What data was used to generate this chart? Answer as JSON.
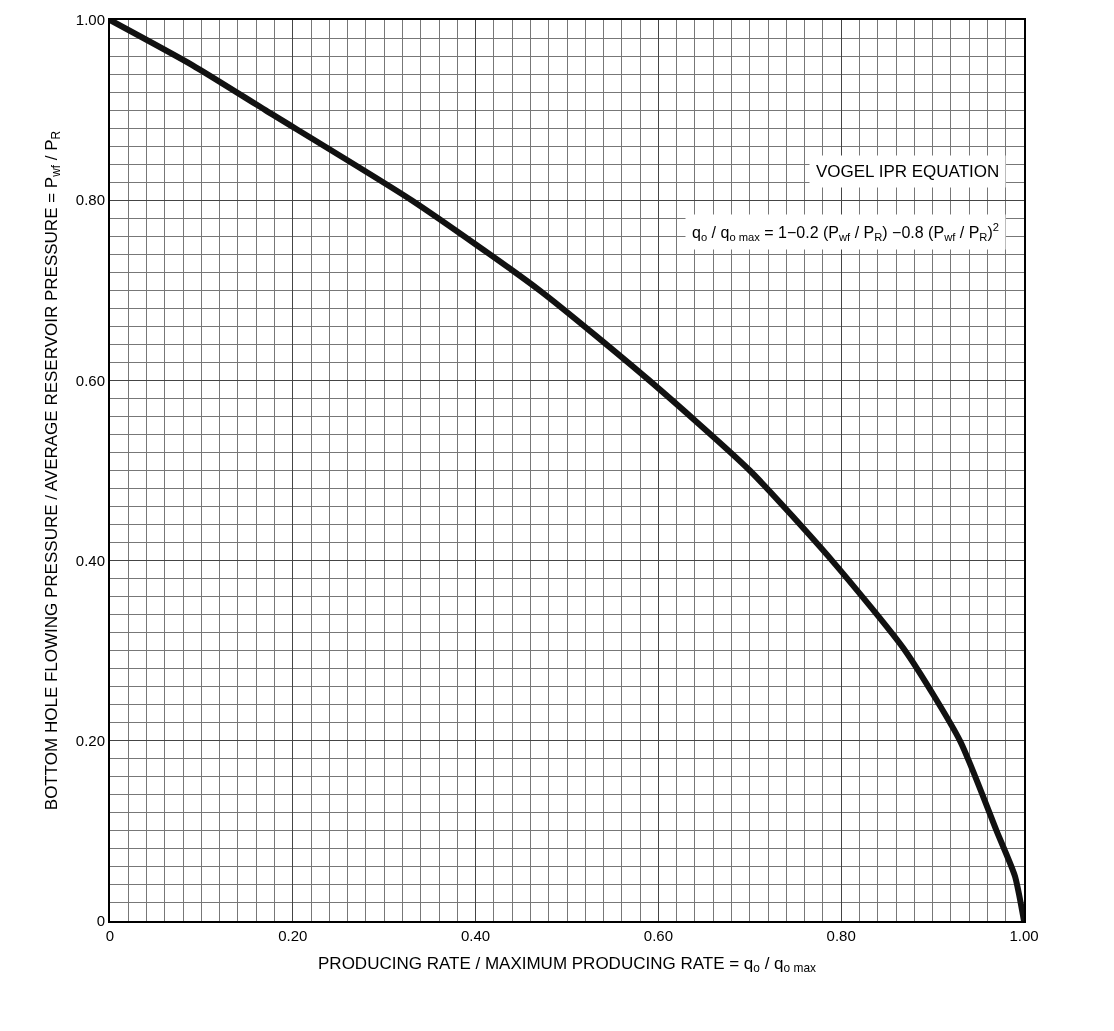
{
  "chart_data": {
    "type": "line",
    "x": [
      1,
      0.99,
      0.97,
      0.93,
      0.87,
      0.79,
      0.7,
      0.59,
      0.47,
      0.33,
      0.17,
      0.09,
      0
    ],
    "series": [
      {
        "color": "#111111",
        "values": [
          0,
          0.05,
          0.1,
          0.2,
          0.3,
          0.4,
          0.5,
          0.6,
          0.7,
          0.8,
          0.9,
          0.95,
          1
        ]
      }
    ],
    "xlabel": "PRODUCING RATE / MAXIMUM PRODUCING RATE = q$_{o}$ / q$_{o max}$",
    "ylabel": "BOTTOM HOLE FLOWING PRESSURE / AVERAGE RESERVOIR PRESSURE = P$_{wf}$ / P$_{R}$",
    "annotations": [
      "VOGEL IPR EQUATION",
      "q$_{o}$ / q$_{o max}$ = 1−0.2 (P$_{wf}$ / P$_{R}$) −0.8 (P$_{wf}$ / P$_{R}$)$^{2}$"
    ],
    "xlim": [
      0,
      1
    ],
    "ylim": [
      0,
      1
    ],
    "xticks": [
      0,
      {
        "value": 0.2,
        "label": "0.20"
      },
      {
        "value": 0.4,
        "label": "0.40"
      },
      {
        "value": 0.6,
        "label": "0.60"
      },
      {
        "value": 0.8,
        "label": "0.80"
      },
      {
        "value": 1,
        "label": "1.00"
      }
    ],
    "yticks": [
      0,
      {
        "value": 0.2,
        "label": "0.20"
      },
      {
        "value": 0.4,
        "label": "0.40"
      },
      {
        "value": 0.6,
        "label": "0.60"
      },
      {
        "value": 0.8,
        "label": "0.80"
      },
      {
        "value": 1,
        "label": "1.00"
      }
    ],
    "grid": true,
    "marker": "none",
    "line_style": "solid"
  }
}
